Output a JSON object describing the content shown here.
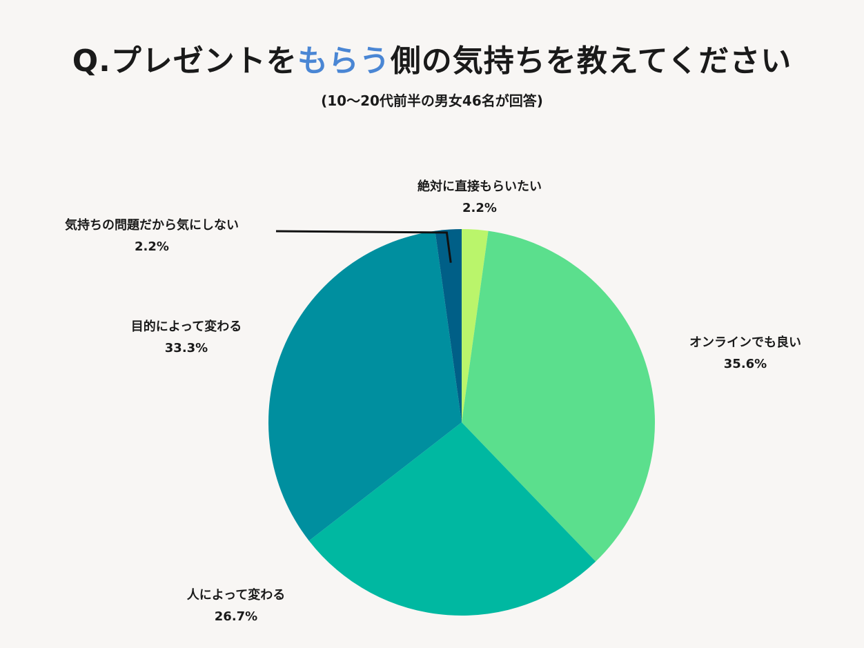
{
  "title": {
    "prefix": "Q.プレゼントを",
    "highlight": "もらう",
    "suffix": "側の気持ちを教えてください",
    "highlight_color": "#4a86d4"
  },
  "subtitle": "(10〜20代前半の男女46名が回答)",
  "chart_data": {
    "type": "pie",
    "title": "Q.プレゼントをもらう側の気持ちを教えてください",
    "subtitle": "(10〜20代前半の男女46名が回答)",
    "start": "12 o'clock, clockwise",
    "slices": [
      {
        "label": "絶対に直接もらいたい",
        "value": 2.2,
        "display": "2.2%",
        "color": "#baf56b"
      },
      {
        "label": "オンラインでも良い",
        "value": 35.6,
        "display": "35.6%",
        "color": "#5bdf8d"
      },
      {
        "label": "人によって変わる",
        "value": 26.7,
        "display": "26.7%",
        "color": "#00b8a1"
      },
      {
        "label": "目的によって変わる",
        "value": 33.3,
        "display": "33.3%",
        "color": "#008f9f"
      },
      {
        "label": "気持ちの問題だから気にしない",
        "value": 2.2,
        "display": "2.2%",
        "color": "#005f87"
      }
    ]
  }
}
